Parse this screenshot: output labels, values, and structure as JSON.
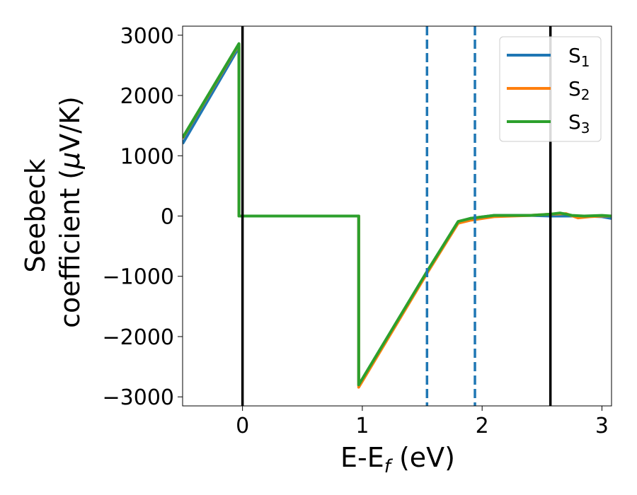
{
  "chart_data": {
    "type": "line",
    "title": "",
    "xlabel": "E-E",
    "xlabel_sub": "f",
    "xlabel_unit": " (eV)",
    "ylabel_line1": "Seebeck",
    "ylabel_line2": "coefficient  (",
    "ylabel_mu": "μ",
    "ylabel_unit": "V/K)",
    "xlim": [
      -0.5,
      3.08
    ],
    "ylim": [
      -3150,
      3150
    ],
    "xticks": [
      0,
      1,
      2,
      3
    ],
    "xtick_labels": [
      "0",
      "1",
      "2",
      "3"
    ],
    "yticks": [
      -3000,
      -2000,
      -1000,
      0,
      1000,
      2000,
      3000
    ],
    "ytick_labels": [
      "−3000",
      "−2000",
      "−1000",
      "0",
      "1000",
      "2000",
      "3000"
    ],
    "grid": false,
    "legend_position": "top-right",
    "vlines": [
      {
        "x": 0.0,
        "style": "solid",
        "color": "#000000"
      },
      {
        "x": 2.57,
        "style": "solid",
        "color": "#000000"
      },
      {
        "x": 1.54,
        "style": "dashed",
        "color": "#1f77b4"
      },
      {
        "x": 1.94,
        "style": "dashed",
        "color": "#1f77b4"
      }
    ],
    "series": [
      {
        "name": "S",
        "sub": "1",
        "color": "#1f77b4",
        "x": [
          -0.5,
          -0.03,
          -0.03,
          0.97,
          0.97,
          1.54,
          1.8,
          1.9,
          2.1,
          2.4,
          2.57,
          2.7,
          2.85,
          3.0,
          3.08
        ],
        "y": [
          1200,
          2800,
          0,
          0,
          -2810,
          -930,
          -100,
          -40,
          10,
          10,
          0,
          0,
          0,
          -10,
          -40
        ]
      },
      {
        "name": "S",
        "sub": "2",
        "color": "#ff7f0e",
        "x": [
          -0.5,
          -0.03,
          -0.03,
          0.97,
          0.97,
          1.54,
          1.8,
          1.9,
          2.1,
          2.4,
          2.57,
          2.7,
          2.8,
          2.9,
          3.0,
          3.08
        ],
        "y": [
          1290,
          2850,
          0,
          0,
          -2840,
          -950,
          -120,
          -70,
          -10,
          10,
          30,
          40,
          -30,
          -10,
          0,
          0
        ]
      },
      {
        "name": "S",
        "sub": "3",
        "color": "#2ca02c",
        "x": [
          -0.5,
          -0.03,
          -0.03,
          0.97,
          0.97,
          1.54,
          1.8,
          1.9,
          2.1,
          2.4,
          2.57,
          2.65,
          2.75,
          2.85,
          3.0,
          3.08
        ],
        "y": [
          1300,
          2860,
          0,
          0,
          -2800,
          -920,
          -90,
          -40,
          10,
          10,
          30,
          50,
          10,
          0,
          10,
          0
        ]
      }
    ]
  }
}
